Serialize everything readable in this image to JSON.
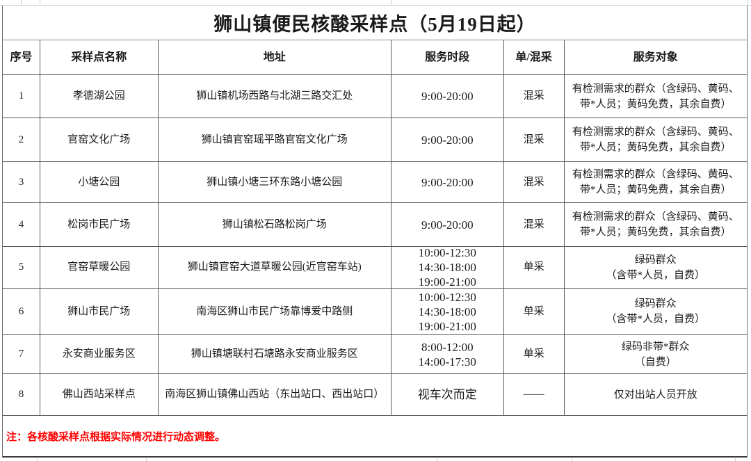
{
  "title": "狮山镇便民核酸采样点（5月19日起）",
  "note": "注：各核酸采样点根据实际情况进行动态调整。",
  "note_color": "#ff0000",
  "table": {
    "headers": [
      "序号",
      "采样点名称",
      "地址",
      "服务时段",
      "单/混采",
      "服务对象"
    ],
    "rows": [
      {
        "no": "1",
        "name": "孝德湖公园",
        "address": "狮山镇机场西路与北湖三路交汇处",
        "hours": [
          "9:00-20:00"
        ],
        "mode": "混采",
        "target": [
          "有检测需求的群众（含绿码、黄码、",
          "带*人员；黄码免费，其余自费）"
        ]
      },
      {
        "no": "2",
        "name": "官窑文化广场",
        "address": "狮山镇官窑瑶平路官窑文化广场",
        "hours": [
          "9:00-20:00"
        ],
        "mode": "混采",
        "target": [
          "有检测需求的群众（含绿码、黄码、",
          "带*人员；黄码免费，其余自费）"
        ]
      },
      {
        "no": "3",
        "name": "小塘公园",
        "address": "狮山镇小塘三环东路小塘公园",
        "hours": [
          "9:00-20:00"
        ],
        "mode": "混采",
        "target": [
          "有检测需求的群众（含绿码、黄码、",
          "带*人员；黄码免费，其余自费）"
        ]
      },
      {
        "no": "4",
        "name": "松岗市民广场",
        "address": "狮山镇松石路松岗广场",
        "hours": [
          "9:00-20:00"
        ],
        "mode": "混采",
        "target": [
          "有检测需求的群众（含绿码、黄码、",
          "带*人员；黄码免费，其余自费）"
        ]
      },
      {
        "no": "5",
        "name": "官窑草暖公园",
        "address": "狮山镇官窑大道草暖公园(近官窑车站)",
        "hours": [
          "10:00-12:30",
          "14:30-18:00",
          "19:00-21:00"
        ],
        "mode": "单采",
        "target": [
          "绿码群众",
          "（含带*人员，自费）"
        ]
      },
      {
        "no": "6",
        "name": "狮山市民广场",
        "address": "南海区狮山市民广场靠博爱中路侧",
        "hours": [
          "10:00-12:30",
          "14:30-18:00",
          "19:00-21:00"
        ],
        "mode": "单采",
        "target": [
          "绿码群众",
          "（含带*人员，自费）"
        ]
      },
      {
        "no": "7",
        "name": "永安商业服务区",
        "address": "狮山镇塘联村石塘路永安商业服务区",
        "hours": [
          "8:00-12:00",
          "14:00-17:30"
        ],
        "mode": "单采",
        "target": [
          "绿码非带*群众",
          "（自费）"
        ]
      },
      {
        "no": "8",
        "name": "佛山西站采样点",
        "address": "南海区狮山镇佛山西站（东出站口、西出站口）",
        "hours": [
          "视车次而定"
        ],
        "mode": "——",
        "target": [
          "仅对出站人员开放"
        ]
      }
    ]
  }
}
